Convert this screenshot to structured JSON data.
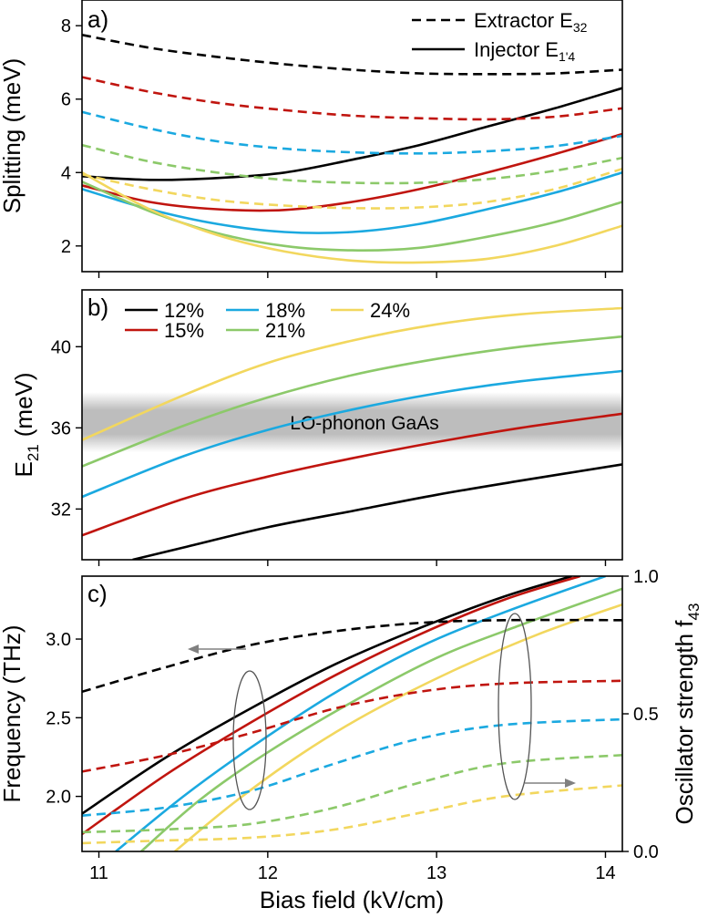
{
  "chart_data": [
    {
      "panel": "a",
      "type": "line",
      "panel_label": "a)",
      "ylabel": "Splitting (meV)",
      "xlabel": "",
      "xlim": [
        10.9,
        14.1
      ],
      "ylim": [
        1.3,
        8.7
      ],
      "yticks": [
        "2",
        "4",
        "6",
        "8"
      ],
      "ytick_values": [
        2,
        4,
        6,
        8
      ],
      "xtick_values": [
        11,
        12,
        13,
        14
      ],
      "legend_location": "top-right",
      "legend": [
        {
          "style": "dashed",
          "label": "Extractor E",
          "sub": "32"
        },
        {
          "style": "solid",
          "label": "Injector E",
          "sub": "1'4"
        }
      ],
      "series": [
        {
          "name": "Injector 12%",
          "color": "#000000",
          "dashed": false,
          "x": [
            10.9,
            11.3,
            11.7,
            12.1,
            12.5,
            12.9,
            13.3,
            13.7,
            14.1
          ],
          "y": [
            3.9,
            3.8,
            3.85,
            4.0,
            4.35,
            4.75,
            5.25,
            5.75,
            6.3
          ]
        },
        {
          "name": "Injector 15%",
          "color": "#c0150f",
          "dashed": false,
          "x": [
            10.9,
            11.3,
            11.7,
            12.1,
            12.5,
            12.9,
            13.3,
            13.7,
            14.1
          ],
          "y": [
            3.65,
            3.2,
            3.0,
            2.98,
            3.2,
            3.55,
            4.0,
            4.5,
            5.05
          ]
        },
        {
          "name": "Injector 18%",
          "color": "#1ba9e0",
          "dashed": false,
          "x": [
            10.9,
            11.3,
            11.7,
            12.1,
            12.5,
            12.9,
            13.3,
            13.7,
            14.1
          ],
          "y": [
            3.55,
            3.0,
            2.6,
            2.38,
            2.38,
            2.6,
            3.0,
            3.45,
            4.0
          ]
        },
        {
          "name": "Injector 21%",
          "color": "#8cc96a",
          "dashed": false,
          "x": [
            10.9,
            11.3,
            11.7,
            12.1,
            12.5,
            12.9,
            13.3,
            13.7,
            14.1
          ],
          "y": [
            3.75,
            2.95,
            2.35,
            2.0,
            1.88,
            1.95,
            2.25,
            2.65,
            3.2
          ]
        },
        {
          "name": "Injector 24%",
          "color": "#f2d75e",
          "dashed": false,
          "x": [
            10.9,
            11.3,
            11.7,
            12.1,
            12.5,
            12.9,
            13.3,
            13.7,
            14.1
          ],
          "y": [
            4.0,
            3.0,
            2.3,
            1.85,
            1.6,
            1.55,
            1.65,
            2.0,
            2.55
          ]
        },
        {
          "name": "Extractor 12%",
          "color": "#000000",
          "dashed": true,
          "x": [
            10.9,
            11.3,
            11.7,
            12.1,
            12.5,
            12.9,
            13.3,
            13.7,
            14.1
          ],
          "y": [
            7.75,
            7.4,
            7.15,
            6.95,
            6.8,
            6.7,
            6.68,
            6.7,
            6.8
          ]
        },
        {
          "name": "Extractor 15%",
          "color": "#c0150f",
          "dashed": true,
          "x": [
            10.9,
            11.3,
            11.7,
            12.1,
            12.5,
            12.9,
            13.3,
            13.7,
            14.1
          ],
          "y": [
            6.6,
            6.2,
            5.9,
            5.7,
            5.55,
            5.48,
            5.45,
            5.52,
            5.75
          ]
        },
        {
          "name": "Extractor 18%",
          "color": "#1ba9e0",
          "dashed": true,
          "x": [
            10.9,
            11.3,
            11.7,
            12.1,
            12.5,
            12.9,
            13.3,
            13.7,
            14.1
          ],
          "y": [
            5.65,
            5.2,
            4.85,
            4.65,
            4.55,
            4.52,
            4.58,
            4.72,
            5.0
          ]
        },
        {
          "name": "Extractor 21%",
          "color": "#8cc96a",
          "dashed": true,
          "x": [
            10.9,
            11.3,
            11.7,
            12.1,
            12.5,
            12.9,
            13.3,
            13.7,
            14.1
          ],
          "y": [
            4.75,
            4.3,
            4.0,
            3.8,
            3.72,
            3.72,
            3.82,
            4.05,
            4.4
          ]
        },
        {
          "name": "Extractor 24%",
          "color": "#f2d75e",
          "dashed": true,
          "x": [
            10.9,
            11.3,
            11.7,
            12.1,
            12.5,
            12.9,
            13.3,
            13.7,
            14.1
          ],
          "y": [
            3.95,
            3.55,
            3.25,
            3.1,
            3.03,
            3.05,
            3.2,
            3.55,
            4.1
          ]
        }
      ]
    },
    {
      "panel": "b",
      "type": "line",
      "panel_label": "b)",
      "ylabel": "E",
      "ylabel_sub": "21",
      "ylabel_unit": "(meV)",
      "xlabel": "",
      "xlim": [
        10.9,
        14.1
      ],
      "ylim": [
        29.5,
        42.8
      ],
      "yticks": [
        "32",
        "36",
        "40"
      ],
      "ytick_values": [
        32,
        36,
        40
      ],
      "xtick_values": [
        11,
        12,
        13,
        14
      ],
      "band": {
        "label": "LO-phonon GaAs",
        "center": 36.3,
        "half_width": 0.8
      },
      "legend_location": "top-left",
      "legend": [
        {
          "label": "12%",
          "color": "#000000"
        },
        {
          "label": "15%",
          "color": "#c0150f"
        },
        {
          "label": "18%",
          "color": "#1ba9e0"
        },
        {
          "label": "21%",
          "color": "#8cc96a"
        },
        {
          "label": "24%",
          "color": "#f2d75e"
        }
      ],
      "series": [
        {
          "name": "12%",
          "color": "#000000",
          "dashed": false,
          "x": [
            11.2,
            11.5,
            12.0,
            12.5,
            13.0,
            13.5,
            14.1
          ],
          "y": [
            29.5,
            30.1,
            31.1,
            31.9,
            32.7,
            33.4,
            34.2
          ]
        },
        {
          "name": "15%",
          "color": "#c0150f",
          "dashed": false,
          "x": [
            10.9,
            11.5,
            12.0,
            12.5,
            13.0,
            13.5,
            14.1
          ],
          "y": [
            30.7,
            32.5,
            33.6,
            34.5,
            35.3,
            36.0,
            36.7
          ]
        },
        {
          "name": "18%",
          "color": "#1ba9e0",
          "dashed": false,
          "x": [
            10.9,
            11.5,
            12.0,
            12.5,
            13.0,
            13.5,
            14.1
          ],
          "y": [
            32.6,
            34.6,
            35.9,
            36.9,
            37.7,
            38.3,
            38.8
          ]
        },
        {
          "name": "21%",
          "color": "#8cc96a",
          "dashed": false,
          "x": [
            10.9,
            11.5,
            12.0,
            12.5,
            13.0,
            13.5,
            14.1
          ],
          "y": [
            34.1,
            36.1,
            37.5,
            38.6,
            39.4,
            40.0,
            40.5
          ]
        },
        {
          "name": "24%",
          "color": "#f2d75e",
          "dashed": false,
          "x": [
            10.9,
            11.5,
            12.0,
            12.5,
            13.0,
            13.5,
            14.1
          ],
          "y": [
            35.4,
            37.6,
            39.2,
            40.3,
            41.1,
            41.6,
            41.9
          ]
        }
      ]
    },
    {
      "panel": "c",
      "type": "line",
      "panel_label": "c)",
      "ylabel": "Frequency (THz)",
      "y2label": "Oscillator strength f",
      "y2label_sub": "43",
      "xlabel": "Bias field (kV/cm)",
      "xlim": [
        10.9,
        14.1
      ],
      "xticks": [
        "11",
        "12",
        "13",
        "14"
      ],
      "xtick_values": [
        11,
        12,
        13,
        14
      ],
      "ylim": [
        1.65,
        3.4
      ],
      "yticks": [
        "2.0",
        "2.5",
        "3.0"
      ],
      "ytick_values": [
        2.0,
        2.5,
        3.0
      ],
      "y2lim": [
        0.0,
        1.0
      ],
      "y2ticks": [
        "0.0",
        "0.5",
        "1.0"
      ],
      "y2tick_values": [
        0.0,
        0.5,
        1.0
      ],
      "series": [
        {
          "name": "Frequency 12%",
          "axis": "left",
          "color": "#000000",
          "dashed": false,
          "x": [
            10.9,
            11.4,
            11.9,
            12.4,
            12.9,
            13.4,
            13.8
          ],
          "y": [
            1.89,
            2.25,
            2.56,
            2.84,
            3.07,
            3.27,
            3.4
          ]
        },
        {
          "name": "Frequency 15%",
          "axis": "left",
          "color": "#c0150f",
          "dashed": false,
          "x": [
            10.9,
            11.4,
            11.9,
            12.4,
            12.9,
            13.4,
            13.85
          ],
          "y": [
            1.76,
            2.14,
            2.47,
            2.77,
            3.03,
            3.25,
            3.4
          ]
        },
        {
          "name": "Frequency 18%",
          "axis": "left",
          "color": "#1ba9e0",
          "dashed": false,
          "x": [
            11.1,
            11.5,
            11.9,
            12.4,
            12.9,
            13.4,
            14.0
          ],
          "y": [
            1.65,
            2.0,
            2.31,
            2.66,
            2.95,
            3.17,
            3.4
          ]
        },
        {
          "name": "Frequency 21%",
          "axis": "left",
          "color": "#8cc96a",
          "dashed": false,
          "x": [
            11.25,
            11.6,
            12.0,
            12.5,
            13.0,
            13.5,
            14.1
          ],
          "y": [
            1.65,
            1.98,
            2.28,
            2.6,
            2.88,
            3.09,
            3.32
          ]
        },
        {
          "name": "Frequency 24%",
          "axis": "left",
          "color": "#f2d75e",
          "dashed": false,
          "x": [
            11.45,
            11.8,
            12.2,
            12.6,
            13.1,
            13.6,
            14.1
          ],
          "y": [
            1.65,
            1.96,
            2.27,
            2.53,
            2.8,
            3.03,
            3.22
          ]
        },
        {
          "name": "Oscillator 12%",
          "axis": "right",
          "color": "#000000",
          "dashed": true,
          "x": [
            10.9,
            11.4,
            11.9,
            12.4,
            12.9,
            13.4,
            14.1
          ],
          "y": [
            0.58,
            0.67,
            0.75,
            0.8,
            0.83,
            0.84,
            0.84
          ]
        },
        {
          "name": "Oscillator 15%",
          "axis": "right",
          "color": "#c0150f",
          "dashed": true,
          "x": [
            10.9,
            11.4,
            11.9,
            12.4,
            12.9,
            13.4,
            14.1
          ],
          "y": [
            0.29,
            0.35,
            0.43,
            0.52,
            0.58,
            0.61,
            0.62
          ]
        },
        {
          "name": "Oscillator 18%",
          "axis": "right",
          "color": "#1ba9e0",
          "dashed": true,
          "x": [
            10.9,
            11.4,
            11.9,
            12.4,
            12.9,
            13.4,
            14.1
          ],
          "y": [
            0.13,
            0.16,
            0.22,
            0.32,
            0.41,
            0.46,
            0.48
          ]
        },
        {
          "name": "Oscillator 21%",
          "axis": "right",
          "color": "#8cc96a",
          "dashed": true,
          "x": [
            10.9,
            11.4,
            11.9,
            12.4,
            12.9,
            13.4,
            14.1
          ],
          "y": [
            0.07,
            0.08,
            0.1,
            0.16,
            0.25,
            0.32,
            0.35
          ]
        },
        {
          "name": "Oscillator 24%",
          "axis": "right",
          "color": "#f2d75e",
          "dashed": true,
          "x": [
            10.9,
            11.4,
            11.9,
            12.4,
            12.9,
            13.4,
            14.1
          ],
          "y": [
            0.03,
            0.04,
            0.05,
            0.08,
            0.14,
            0.2,
            0.24
          ]
        }
      ],
      "annotations": [
        {
          "type": "ellipse-arrow",
          "points_to": "left-axis",
          "center_x": 11.93,
          "center_y": 2.17
        },
        {
          "type": "ellipse-arrow",
          "points_to": "right-axis",
          "center_x": 13.45,
          "center_y": 0.56
        }
      ]
    }
  ]
}
